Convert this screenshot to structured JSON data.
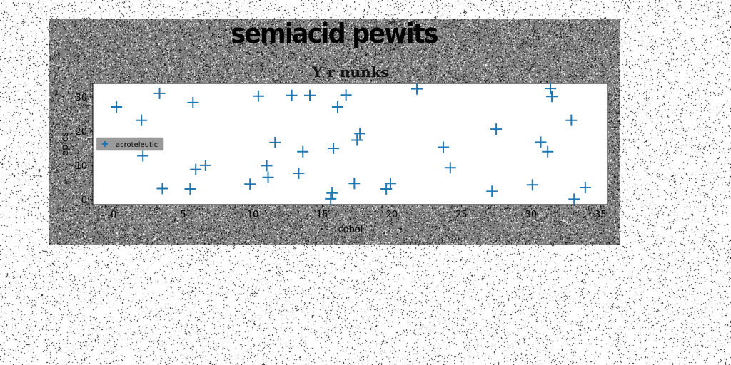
{
  "page": {
    "title": "semiacid pewits"
  },
  "colors": {
    "panel": "#808080",
    "plot_background": "#ffffff",
    "marker": "#1f77b4",
    "legend_background": "#9a9a9a"
  },
  "chart_data": {
    "type": "scatter",
    "title": "Y r nunks",
    "xlabel": "cobol",
    "ylabel": "epics",
    "xlim": [
      -1.5,
      35.5
    ],
    "ylim": [
      -1.5,
      34
    ],
    "xticks": [
      0,
      5,
      10,
      15,
      20,
      25,
      30,
      35
    ],
    "yticks": [
      0,
      10,
      20,
      30
    ],
    "marker": "plus",
    "grid": false,
    "legend": {
      "position": "center-left",
      "entries": [
        "acroteleutic"
      ]
    },
    "series": [
      {
        "name": "acroteleutic",
        "color": "#1f77b4",
        "points": [
          [
            0.2,
            27.1
          ],
          [
            2.0,
            23.2
          ],
          [
            2.1,
            12.8
          ],
          [
            3.3,
            31.1
          ],
          [
            3.5,
            3.2
          ],
          [
            5.5,
            3.1
          ],
          [
            5.7,
            28.4
          ],
          [
            5.9,
            8.8
          ],
          [
            6.6,
            10.0
          ],
          [
            9.8,
            4.5
          ],
          [
            10.4,
            30.3
          ],
          [
            11.0,
            9.9
          ],
          [
            11.1,
            6.5
          ],
          [
            11.6,
            16.7
          ],
          [
            12.8,
            30.5
          ],
          [
            13.3,
            7.7
          ],
          [
            13.6,
            14.0
          ],
          [
            14.1,
            30.5
          ],
          [
            15.6,
            0.2
          ],
          [
            15.7,
            1.9
          ],
          [
            15.8,
            15.0
          ],
          [
            16.1,
            27.1
          ],
          [
            16.7,
            30.6
          ],
          [
            17.3,
            4.7
          ],
          [
            17.5,
            17.4
          ],
          [
            17.7,
            19.3
          ],
          [
            19.6,
            3.1
          ],
          [
            19.9,
            4.7
          ],
          [
            21.8,
            32.4
          ],
          [
            23.7,
            15.3
          ],
          [
            24.2,
            9.3
          ],
          [
            27.2,
            2.4
          ],
          [
            27.5,
            20.6
          ],
          [
            30.1,
            4.3
          ],
          [
            30.7,
            16.8
          ],
          [
            31.2,
            14.0
          ],
          [
            31.4,
            32.5
          ],
          [
            31.5,
            30.2
          ],
          [
            32.9,
            23.2
          ],
          [
            33.1,
            0.1
          ],
          [
            33.9,
            3.5
          ]
        ]
      }
    ]
  }
}
